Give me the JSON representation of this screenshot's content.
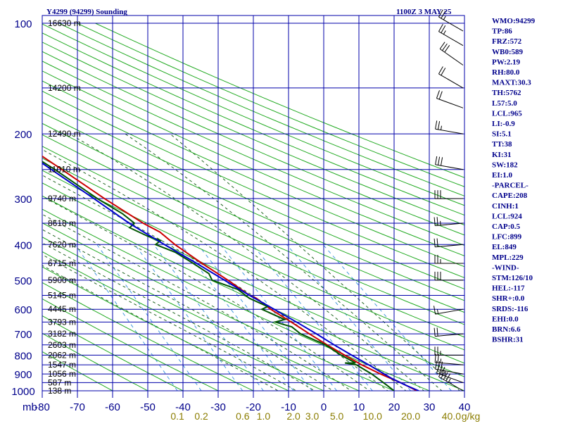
{
  "header": {
    "station": "Y4299 (94299) Sounding",
    "time": "1100Z  3 MAY 25"
  },
  "colors": {
    "grid": "#0000aa",
    "dry_adiabat": "#22aa22",
    "moist_adiabat": "#226622",
    "mixing_ratio": "#4499dd",
    "temperature": "#cc0000",
    "dewpoint": "#005500",
    "parcel": "#0000cc",
    "index_text": "#00008b"
  },
  "chart_data": {
    "type": "line",
    "title": "Y4299 (94299) Sounding",
    "ylabel": "mb",
    "pressure_levels": [
      100,
      200,
      300,
      400,
      500,
      600,
      700,
      800,
      900,
      1000
    ],
    "pressure_labels": [
      "100",
      "200",
      "300",
      "400",
      "500",
      "600",
      "700",
      "800",
      "900",
      "1000"
    ],
    "mb_label": "mb",
    "temp_ticks": [
      -80,
      -70,
      -60,
      -50,
      -40,
      -30,
      -20,
      -10,
      0,
      10,
      20,
      30,
      40
    ],
    "temp_labels": [
      "-80",
      "-70",
      "-60",
      "-50",
      "-40",
      "-30",
      "-20",
      "-10",
      "0",
      "10",
      "20",
      "30",
      "40"
    ],
    "xlim": [
      -80,
      40
    ],
    "ylim": [
      1000,
      100
    ],
    "height_labels": [
      {
        "p": 100,
        "text": "16630 m"
      },
      {
        "p": 150,
        "text": "14200 m"
      },
      {
        "p": 200,
        "text": "12490 m"
      },
      {
        "p": 250,
        "text": "11010 m"
      },
      {
        "p": 300,
        "text": "9740 m"
      },
      {
        "p": 350,
        "text": "8618 m"
      },
      {
        "p": 400,
        "text": "7620 m"
      },
      {
        "p": 450,
        "text": "6715 m"
      },
      {
        "p": 500,
        "text": "5900 m"
      },
      {
        "p": 550,
        "text": "5145 m"
      },
      {
        "p": 600,
        "text": "4445 m"
      },
      {
        "p": 650,
        "text": "3793 m"
      },
      {
        "p": 700,
        "text": "3182 m"
      },
      {
        "p": 750,
        "text": "2603 m"
      },
      {
        "p": 800,
        "text": "2062 m"
      },
      {
        "p": 850,
        "text": "1547 m"
      },
      {
        "p": 900,
        "text": "1056 m"
      },
      {
        "p": 950,
        "text": "587 m"
      },
      {
        "p": 1000,
        "text": "138 m"
      }
    ],
    "mixing_ratio_labels": [
      {
        "w": 0.1,
        "text": "0.1"
      },
      {
        "w": 0.2,
        "text": "0.2"
      },
      {
        "w": 0.6,
        "text": "0.6"
      },
      {
        "w": 1.0,
        "text": "1.0"
      },
      {
        "w": 2.0,
        "text": "2.0"
      },
      {
        "w": 3.0,
        "text": "3.0"
      },
      {
        "w": 5.0,
        "text": "5.0"
      },
      {
        "w": 10.0,
        "text": "10.0"
      },
      {
        "w": 20.0,
        "text": "20.0"
      },
      {
        "w": 40.0,
        "text": "40.0"
      }
    ],
    "mixing_ratio_unit": "g/kg",
    "series": [
      {
        "key": "temperature",
        "points": [
          [
            1000,
            26.5
          ],
          [
            950,
            23
          ],
          [
            900,
            18.5
          ],
          [
            850,
            14.5
          ],
          [
            800,
            11
          ],
          [
            750,
            7.5
          ],
          [
            700,
            4
          ],
          [
            650,
            0.5
          ],
          [
            600,
            -3.5
          ],
          [
            560,
            -6
          ],
          [
            550,
            -7.5
          ],
          [
            500,
            -11.5
          ],
          [
            450,
            -16.5
          ],
          [
            400,
            -21.5
          ],
          [
            370,
            -24
          ],
          [
            350,
            -27.5
          ],
          [
            300,
            -35
          ],
          [
            250,
            -43
          ],
          [
            200,
            -53
          ],
          [
            150,
            -63
          ],
          [
            130,
            -70
          ],
          [
            120,
            -72.5
          ],
          [
            110,
            -75
          ],
          [
            100,
            -80
          ]
        ]
      },
      {
        "key": "dewpoint",
        "points": [
          [
            1000,
            20
          ],
          [
            960,
            18.5
          ],
          [
            900,
            16
          ],
          [
            850,
            13
          ],
          [
            840,
            10
          ],
          [
            840,
            13
          ],
          [
            800,
            10
          ],
          [
            750,
            7
          ],
          [
            700,
            1.5
          ],
          [
            670,
            0
          ],
          [
            660,
            -2
          ],
          [
            650,
            -4
          ],
          [
            640,
            -1
          ],
          [
            600,
            -6
          ],
          [
            590,
            -4
          ],
          [
            560,
            -8
          ],
          [
            530,
            -10
          ],
          [
            500,
            -16
          ],
          [
            480,
            -16
          ],
          [
            450,
            -19
          ],
          [
            420,
            -22.5
          ],
          [
            400,
            -27
          ],
          [
            390,
            -25
          ],
          [
            380,
            -28
          ],
          [
            360,
            -32
          ],
          [
            350,
            -30
          ],
          [
            330,
            -32
          ],
          [
            300,
            -37
          ],
          [
            250,
            -45
          ],
          [
            200,
            -56
          ],
          [
            170,
            -65
          ],
          [
            150,
            -67
          ],
          [
            140,
            -72
          ],
          [
            120,
            -80
          ]
        ]
      },
      {
        "key": "parcel",
        "points": [
          [
            1000,
            27
          ],
          [
            965,
            24
          ],
          [
            924,
            21
          ],
          [
            899,
            19.5
          ],
          [
            850,
            16.5
          ],
          [
            800,
            13
          ],
          [
            750,
            9.5
          ],
          [
            700,
            6
          ],
          [
            650,
            2
          ],
          [
            600,
            -2.5
          ],
          [
            550,
            -7.5
          ],
          [
            500,
            -12.5
          ],
          [
            450,
            -18
          ],
          [
            400,
            -24.5
          ],
          [
            350,
            -31.5
          ],
          [
            300,
            -38
          ],
          [
            250,
            -46
          ],
          [
            200,
            -55.5
          ],
          [
            150,
            -66
          ],
          [
            130,
            -72
          ],
          [
            120,
            -78
          ]
        ]
      }
    ],
    "wind_barbs": [
      {
        "p": 1000,
        "dir": 300,
        "spd": 45
      },
      {
        "p": 950,
        "dir": 290,
        "spd": 35
      },
      {
        "p": 900,
        "dir": 280,
        "spd": 30
      },
      {
        "p": 850,
        "dir": 275,
        "spd": 25
      },
      {
        "p": 800,
        "dir": 270,
        "spd": 25
      },
      {
        "p": 700,
        "dir": 265,
        "spd": 20
      },
      {
        "p": 600,
        "dir": 260,
        "spd": 15
      },
      {
        "p": 500,
        "dir": 270,
        "spd": 30
      },
      {
        "p": 450,
        "dir": 270,
        "spd": 25
      },
      {
        "p": 400,
        "dir": 265,
        "spd": 20
      },
      {
        "p": 350,
        "dir": 265,
        "spd": 25
      },
      {
        "p": 300,
        "dir": 270,
        "spd": 30
      },
      {
        "p": 250,
        "dir": 280,
        "spd": 30
      },
      {
        "p": 200,
        "dir": 280,
        "spd": 25
      },
      {
        "p": 170,
        "dir": 290,
        "spd": 20
      },
      {
        "p": 150,
        "dir": 300,
        "spd": 20
      },
      {
        "p": 130,
        "dir": 305,
        "spd": 30
      },
      {
        "p": 115,
        "dir": 300,
        "spd": 25
      },
      {
        "p": 105,
        "dir": 300,
        "spd": 25
      }
    ]
  },
  "indices": [
    "WMO:94299",
    "TP:86",
    "FRZ:572",
    "WB0:589",
    "PW:2.19",
    "RH:80.0",
    "MAXT:30.3",
    "TH:5762",
    "L57:5.0",
    "LCL:965",
    "LI:-0.9",
    "SI:5.1",
    "TT:38",
    "KI:31",
    "SW:182",
    "EI:1.0",
    "-PARCEL-",
    "CAPE:208",
    "CINH:1",
    "LCL:924",
    "CAP:0.5",
    "LFC:899",
    "EL:849",
    "MPL:229",
    "-WIND-",
    "STM:126/10",
    "HEL:-117",
    "SHR+:0.0",
    "SRDS:-116",
    "EHI:0.0",
    "BRN:6.6",
    "BSHR:31"
  ]
}
